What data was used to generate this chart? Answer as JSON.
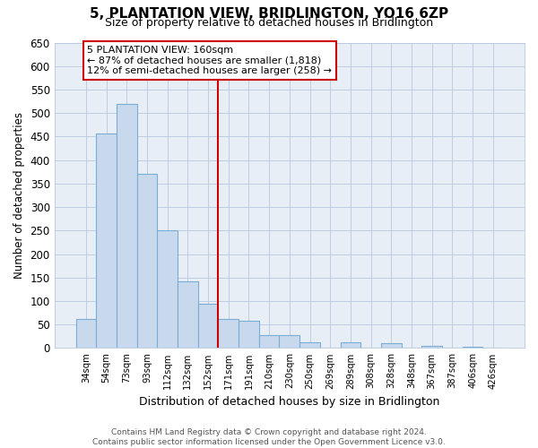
{
  "title": "5, PLANTATION VIEW, BRIDLINGTON, YO16 6ZP",
  "subtitle": "Size of property relative to detached houses in Bridlington",
  "xlabel": "Distribution of detached houses by size in Bridlington",
  "ylabel": "Number of detached properties",
  "bar_labels": [
    "34sqm",
    "54sqm",
    "73sqm",
    "93sqm",
    "112sqm",
    "132sqm",
    "152sqm",
    "171sqm",
    "191sqm",
    "210sqm",
    "230sqm",
    "250sqm",
    "269sqm",
    "289sqm",
    "308sqm",
    "328sqm",
    "348sqm",
    "367sqm",
    "387sqm",
    "406sqm",
    "426sqm"
  ],
  "bar_values": [
    62,
    457,
    519,
    370,
    250,
    141,
    94,
    62,
    58,
    27,
    28,
    13,
    0,
    12,
    0,
    10,
    0,
    5,
    0,
    3,
    0
  ],
  "bar_color": "#c8d9ee",
  "bar_edge_color": "#7aadd4",
  "ylim": [
    0,
    650
  ],
  "yticks": [
    0,
    50,
    100,
    150,
    200,
    250,
    300,
    350,
    400,
    450,
    500,
    550,
    600,
    650
  ],
  "vline_x": 6.5,
  "vline_color": "#cc0000",
  "annotation_text": "5 PLANTATION VIEW: 160sqm\n← 87% of detached houses are smaller (1,818)\n12% of semi-detached houses are larger (258) →",
  "annotation_box_color": "#ffffff",
  "annotation_box_edge": "#cc0000",
  "footnote": "Contains HM Land Registry data © Crown copyright and database right 2024.\nContains public sector information licensed under the Open Government Licence v3.0.",
  "background_color": "#ffffff",
  "plot_bg_color": "#e8eef5",
  "grid_color": "#b8c8dc"
}
